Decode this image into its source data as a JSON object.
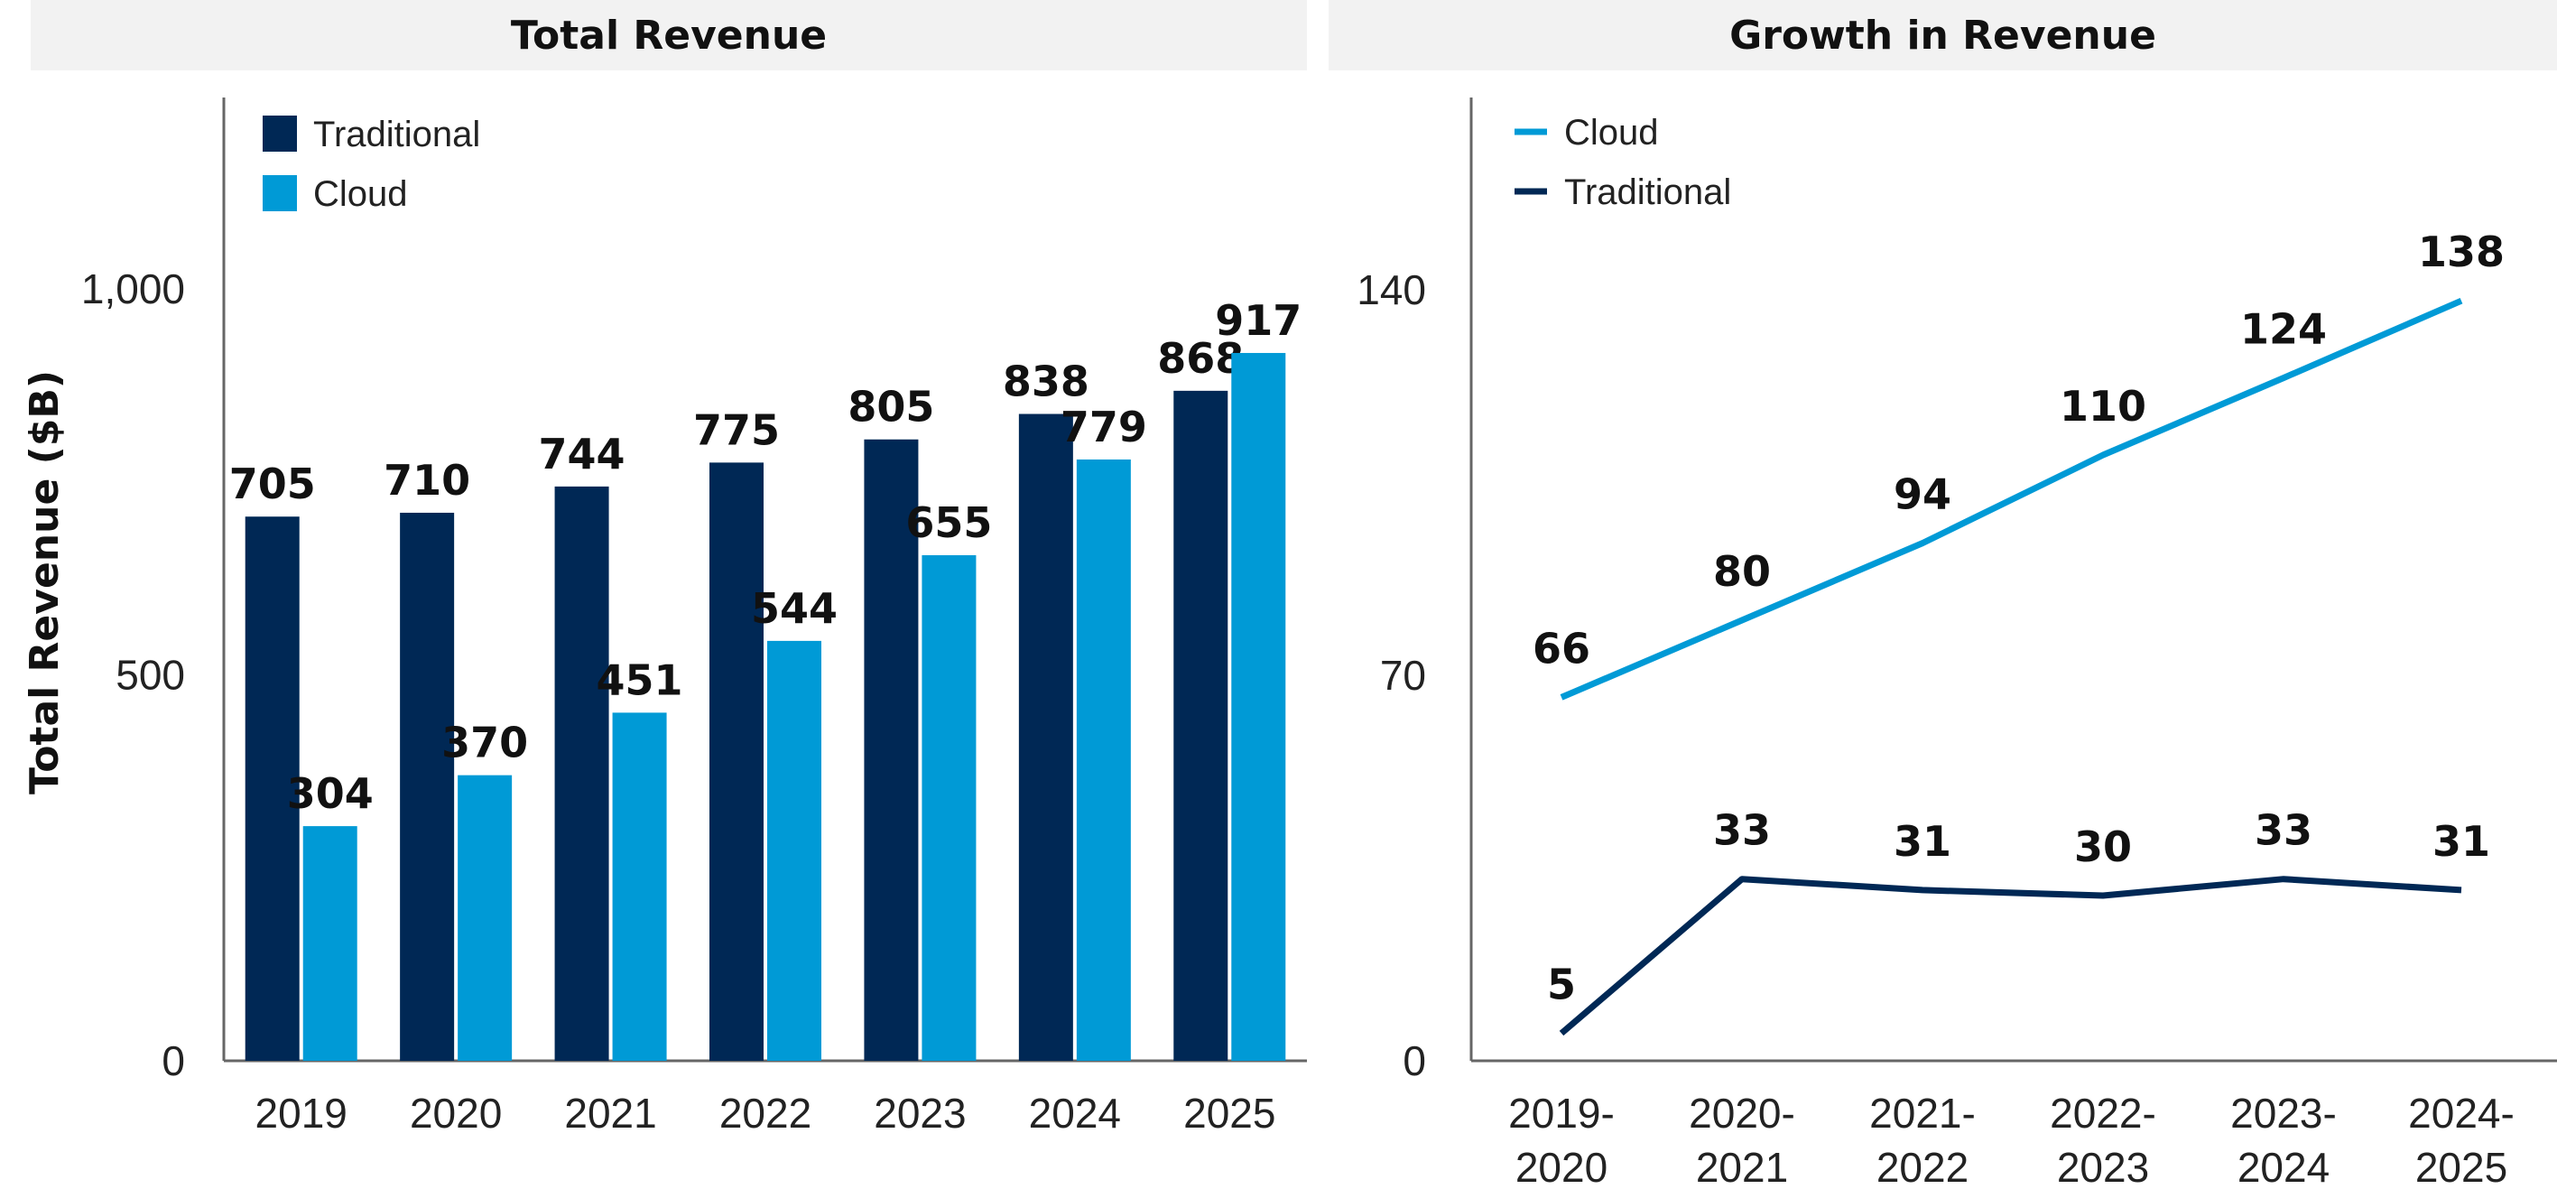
{
  "colors": {
    "traditional": "#002855",
    "cloud": "#009ad6",
    "axis": "#666666",
    "header_bg": "#f2f2f2"
  },
  "chart_data": [
    {
      "type": "bar",
      "title": "Total Revenue",
      "ylabel": "Total Revenue ($B)",
      "xlabel": "",
      "ylim": [
        0,
        1250
      ],
      "yticks": [
        0,
        500,
        1000
      ],
      "ytick_labels": [
        "0",
        "500",
        "1,000"
      ],
      "categories": [
        "2019",
        "2020",
        "2021",
        "2022",
        "2023",
        "2024",
        "2025"
      ],
      "legend_position": "top-left",
      "series": [
        {
          "name": "Traditional",
          "color": "#002855",
          "values": [
            705,
            710,
            744,
            775,
            805,
            838,
            868
          ]
        },
        {
          "name": "Cloud",
          "color": "#009ad6",
          "values": [
            304,
            370,
            451,
            544,
            655,
            779,
            917
          ]
        }
      ]
    },
    {
      "type": "line",
      "title": "Growth in Revenue",
      "ylabel": "",
      "xlabel": "",
      "ylim": [
        0,
        175
      ],
      "yticks": [
        0,
        70,
        140
      ],
      "ytick_labels": [
        "0",
        "70",
        "140"
      ],
      "categories": [
        [
          "2019-",
          "2020"
        ],
        [
          "2020-",
          "2021"
        ],
        [
          "2021-",
          "2022"
        ],
        [
          "2022-",
          "2023"
        ],
        [
          "2023-",
          "2024"
        ],
        [
          "2024-",
          "2025"
        ]
      ],
      "legend_position": "top-left",
      "series": [
        {
          "name": "Cloud",
          "color": "#009ad6",
          "values": [
            66,
            80,
            94,
            110,
            124,
            138
          ]
        },
        {
          "name": "Traditional",
          "color": "#002855",
          "values": [
            5,
            33,
            31,
            30,
            33,
            31
          ]
        }
      ]
    }
  ]
}
